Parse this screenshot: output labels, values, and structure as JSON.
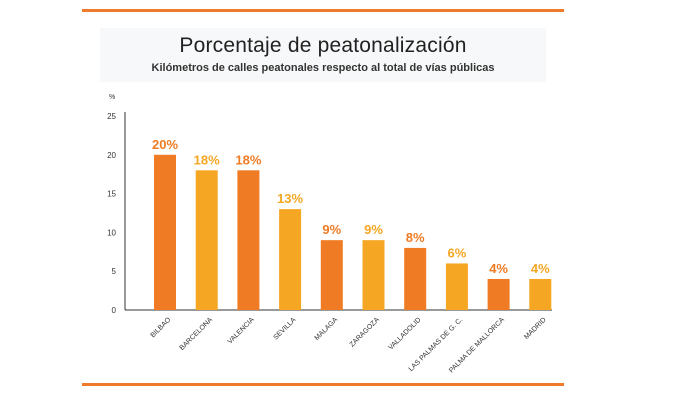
{
  "chart_data": {
    "type": "bar",
    "title": "Porcentaje de peatonalización",
    "subtitle": "Kilómetros de calles peatonales respecto al total de vías públicas",
    "ylabel": "%",
    "ylim": [
      0,
      25
    ],
    "yticks": [
      0,
      5,
      10,
      15,
      20,
      25
    ],
    "grid": false,
    "legend": "none",
    "categories": [
      "BILBAO",
      "BARCELONA",
      "VALENCIA",
      "SEVILLA",
      "MALAGA",
      "ZARAGOZA",
      "VALLADOLID",
      "LAS PALMAS DE G. C.",
      "PALMA DE MALLORCA",
      "MADRID"
    ],
    "values": [
      20,
      18,
      18,
      13,
      9,
      9,
      8,
      6,
      4,
      4
    ],
    "labels": [
      "20%",
      "18%",
      "18%",
      "13%",
      "9%",
      "9%",
      "8%",
      "6%",
      "4%",
      "4%"
    ],
    "colors": {
      "orange": "#ef7b24",
      "gold": "#f5a623",
      "rule": "#ef7a2b",
      "axis": "#333333"
    },
    "bar_colors": [
      "orange",
      "gold",
      "orange",
      "gold",
      "orange",
      "gold",
      "orange",
      "gold",
      "orange",
      "gold"
    ]
  }
}
